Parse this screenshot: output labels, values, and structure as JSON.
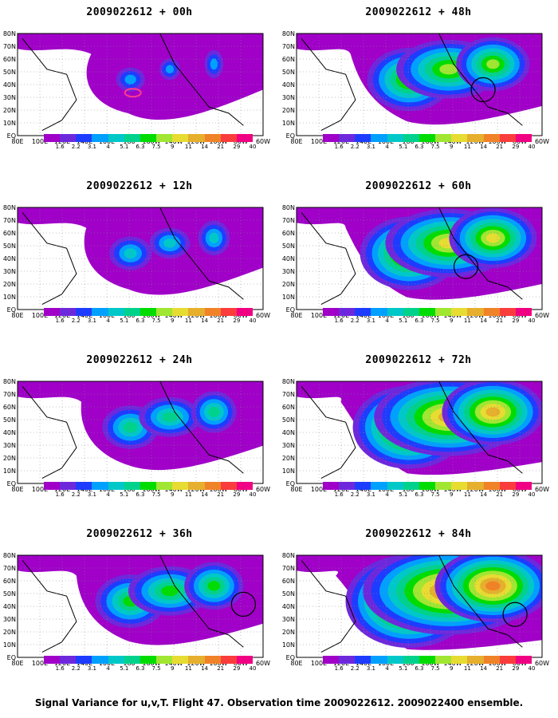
{
  "footer": "Signal Variance for u,v,T. Flight 47. Observation time 2009022612. 2009022400 ensemble.",
  "colorbar": {
    "levels": [
      "1.6",
      "2.2",
      "3.1",
      "4",
      "5.1",
      "6.3",
      "7.5",
      "9",
      "11",
      "14",
      "21",
      "29",
      "40"
    ],
    "colors": [
      "#a000c8",
      "#6e28dc",
      "#1e3cff",
      "#00a0ff",
      "#00c8c8",
      "#00d28c",
      "#00dc00",
      "#a0e632",
      "#e6dc32",
      "#e6af2d",
      "#f08228",
      "#fa3c3c",
      "#f00082"
    ]
  },
  "map_axes": {
    "lon_labels": [
      "80E",
      "100E",
      "120E",
      "140E",
      "160E",
      "180",
      "160W",
      "140W",
      "120W",
      "100W",
      "80W",
      "60W"
    ],
    "lat_labels": [
      "80N",
      "70N",
      "60N",
      "50N",
      "40N",
      "30N",
      "20N",
      "10N",
      "EQ"
    ]
  },
  "panels": [
    {
      "title": "2009022612 + 00h",
      "level": 0,
      "circle": null,
      "pink": true
    },
    {
      "title": "2009022612 + 48h",
      "level": 4,
      "circle": [
        1,
        0.76,
        0.55
      ],
      "pink": false
    },
    {
      "title": "2009022612 + 12h",
      "level": 1,
      "circle": null,
      "pink": false
    },
    {
      "title": "2009022612 + 60h",
      "level": 5,
      "circle": [
        1,
        0.69,
        0.58
      ],
      "pink": false
    },
    {
      "title": "2009022612 + 24h",
      "level": 2,
      "circle": null,
      "pink": false
    },
    {
      "title": "2009022612 + 72h",
      "level": 6,
      "circle": [
        0,
        0,
        0
      ],
      "pink": false
    },
    {
      "title": "2009022612 + 36h",
      "level": 3,
      "circle": [
        1,
        0.92,
        0.48
      ],
      "pink": false
    },
    {
      "title": "2009022612 + 84h",
      "level": 7,
      "circle": [
        1,
        0.89,
        0.58
      ],
      "pink": false
    }
  ]
}
